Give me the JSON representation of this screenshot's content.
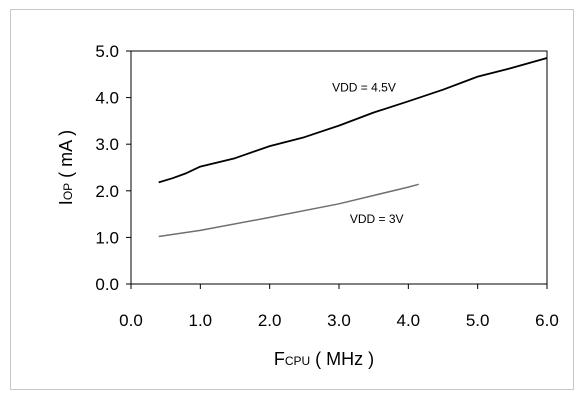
{
  "chart_data": {
    "type": "line",
    "xlabel": {
      "main": "F",
      "sub": "CPU",
      "rest": " ( MHz )"
    },
    "ylabel": {
      "main": "I",
      "sub": "OP",
      "rest": " ( mA )"
    },
    "xlim": [
      0.0,
      6.0
    ],
    "ylim": [
      0.0,
      5.0
    ],
    "x_ticks": [
      "0.0",
      "1.0",
      "2.0",
      "3.0",
      "4.0",
      "5.0",
      "6.0"
    ],
    "y_ticks": [
      "0.0",
      "1.0",
      "2.0",
      "3.0",
      "4.0",
      "5.0"
    ],
    "grid": false,
    "series": [
      {
        "name": "VDD = 4.5V",
        "color": "#000000",
        "x": [
          0.4,
          0.6,
          0.8,
          1.0,
          1.5,
          2.0,
          2.5,
          3.0,
          3.5,
          4.0,
          4.5,
          5.0,
          5.5,
          6.0
        ],
        "y": [
          2.18,
          2.27,
          2.38,
          2.52,
          2.7,
          2.96,
          3.15,
          3.4,
          3.68,
          3.92,
          4.17,
          4.45,
          4.64,
          4.85
        ]
      },
      {
        "name": "VDD = 3V",
        "color": "#707070",
        "x": [
          0.4,
          1.0,
          2.0,
          3.0,
          4.0,
          4.15
        ],
        "y": [
          1.02,
          1.15,
          1.43,
          1.72,
          2.08,
          2.14
        ]
      }
    ]
  }
}
